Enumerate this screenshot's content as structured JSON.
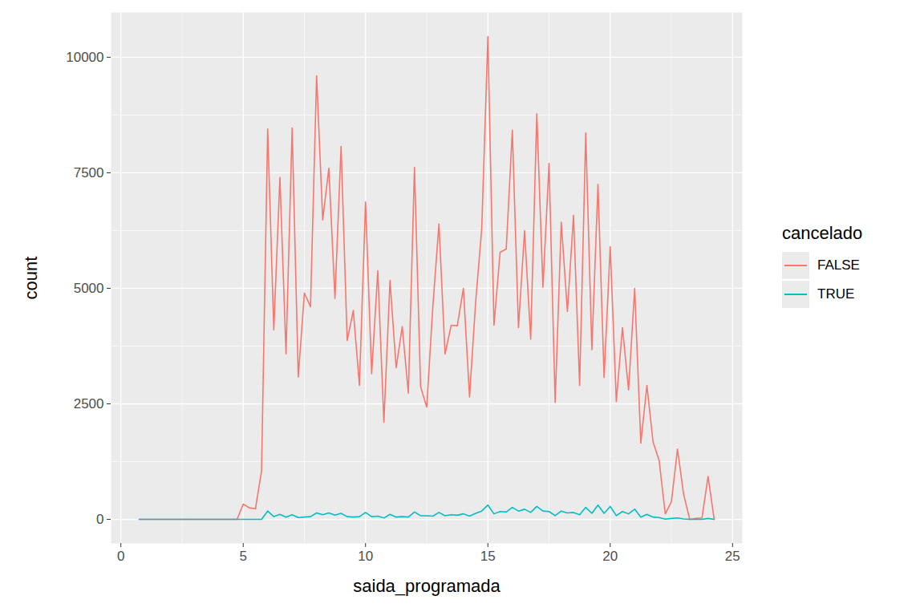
{
  "chart_data": {
    "type": "line",
    "x_label": "saida_programada",
    "y_label": "count",
    "legend_title": "cancelado",
    "legend": "right",
    "grid": true,
    "xlim": [
      -0.4,
      25.4
    ],
    "ylim": [
      -520,
      10970
    ],
    "xticks": [
      0,
      5,
      10,
      15,
      20,
      25
    ],
    "yticks": [
      0,
      2500,
      5000,
      7500,
      10000
    ],
    "x": [
      0.75,
      1,
      1.25,
      1.5,
      1.75,
      2,
      2.25,
      2.5,
      2.75,
      3,
      3.25,
      3.5,
      3.75,
      4,
      4.25,
      4.5,
      4.75,
      5,
      5.25,
      5.5,
      5.75,
      6,
      6.25,
      6.5,
      6.75,
      7,
      7.25,
      7.5,
      7.75,
      8,
      8.25,
      8.5,
      8.75,
      9,
      9.25,
      9.5,
      9.75,
      10,
      10.25,
      10.5,
      10.75,
      11,
      11.25,
      11.5,
      11.75,
      12,
      12.25,
      12.5,
      12.75,
      13,
      13.25,
      13.5,
      13.75,
      14,
      14.25,
      14.5,
      14.75,
      15,
      15.25,
      15.5,
      15.75,
      16,
      16.25,
      16.5,
      16.75,
      17,
      17.25,
      17.5,
      17.75,
      18,
      18.25,
      18.5,
      18.75,
      19,
      19.25,
      19.5,
      19.75,
      20,
      20.25,
      20.5,
      20.75,
      21,
      21.25,
      21.5,
      21.75,
      22,
      22.25,
      22.5,
      22.75,
      23,
      23.25,
      23.5,
      23.75,
      24,
      24.25
    ],
    "series": [
      {
        "name": "FALSE",
        "color": "#F8766D",
        "values": [
          0,
          0,
          0,
          0,
          0,
          0,
          0,
          0,
          0,
          0,
          0,
          0,
          0,
          0,
          0,
          0,
          0,
          330,
          250,
          230,
          1050,
          8450,
          4100,
          7400,
          3580,
          8470,
          3080,
          4900,
          4600,
          9600,
          6480,
          7600,
          4780,
          8070,
          3870,
          4520,
          2900,
          6870,
          3150,
          5380,
          2100,
          5170,
          3280,
          4170,
          2730,
          7620,
          2870,
          2430,
          4600,
          6390,
          3580,
          4200,
          4190,
          5000,
          2650,
          4700,
          6300,
          10450,
          4200,
          5780,
          5850,
          8420,
          4150,
          6250,
          3900,
          8780,
          5020,
          7700,
          2530,
          6430,
          4500,
          6580,
          2900,
          8360,
          3670,
          7250,
          3070,
          5900,
          2550,
          4150,
          2800,
          5000,
          1650,
          2900,
          1680,
          1270,
          120,
          380,
          1520,
          540,
          0,
          20,
          30,
          930,
          0
        ]
      },
      {
        "name": "TRUE",
        "color": "#00BFC4",
        "values": [
          0,
          0,
          0,
          0,
          0,
          0,
          0,
          0,
          0,
          0,
          0,
          0,
          0,
          0,
          0,
          0,
          0,
          0,
          0,
          0,
          0,
          180,
          60,
          110,
          50,
          100,
          40,
          50,
          60,
          140,
          100,
          140,
          90,
          130,
          60,
          50,
          60,
          150,
          60,
          70,
          30,
          110,
          50,
          60,
          50,
          160,
          80,
          80,
          70,
          150,
          80,
          100,
          90,
          120,
          70,
          130,
          180,
          310,
          120,
          170,
          160,
          260,
          180,
          220,
          150,
          280,
          180,
          170,
          80,
          180,
          140,
          150,
          100,
          260,
          130,
          310,
          130,
          280,
          80,
          170,
          120,
          220,
          50,
          110,
          50,
          40,
          5,
          20,
          30,
          10,
          0,
          0,
          0,
          20,
          0
        ]
      }
    ]
  }
}
